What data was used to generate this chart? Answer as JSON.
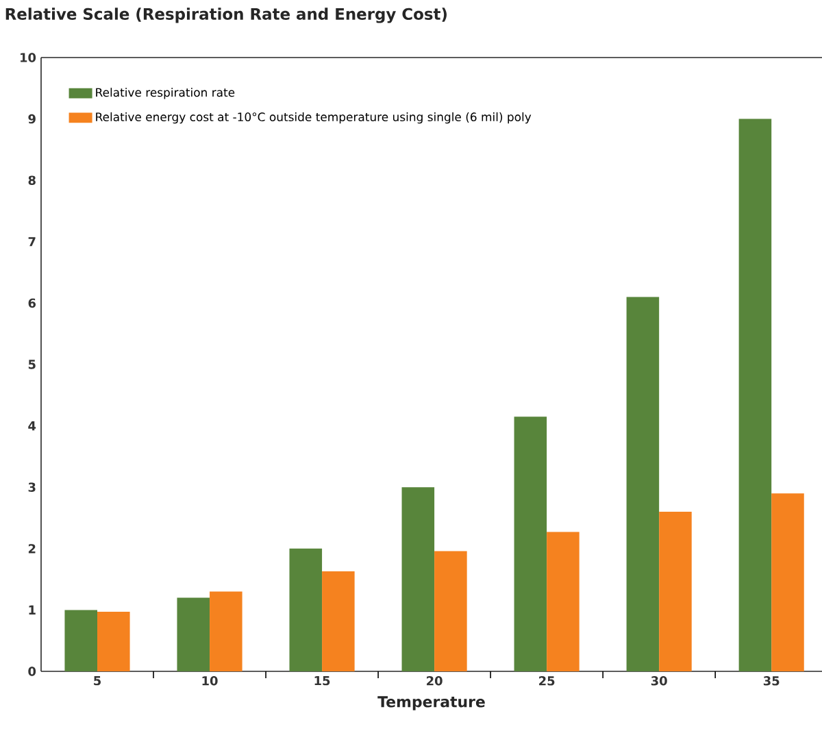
{
  "chart_data": {
    "type": "bar",
    "title": "Relative Scale (Respiration Rate and Energy Cost)",
    "xlabel": "Temperature",
    "categories": [
      "5",
      "10",
      "15",
      "20",
      "25",
      "30",
      "35"
    ],
    "series": [
      {
        "name": "Relative respiration rate",
        "color": "#58853b",
        "values": [
          1.0,
          1.2,
          2.0,
          3.0,
          4.15,
          6.1,
          9.0
        ]
      },
      {
        "name": "Relative energy cost at -10°C outside temperature using single (6 mil) poly",
        "color": "#f5821f",
        "values": [
          0.97,
          1.3,
          1.63,
          1.96,
          2.27,
          2.6,
          2.9
        ]
      }
    ],
    "ylim": [
      0,
      10
    ],
    "yticks": [
      0,
      1,
      2,
      3,
      4,
      5,
      6,
      7,
      8,
      9,
      10
    ],
    "grid": false,
    "legend": "top left"
  }
}
